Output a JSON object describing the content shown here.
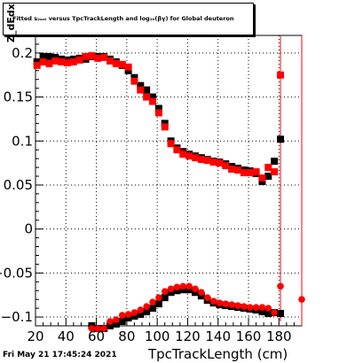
{
  "page": {
    "footer_date": "Fri May 21 17:45:24 2021"
  },
  "chart_data": {
    "type": "scatter",
    "title": "Fitted s_{Z} versus TpcTrackLength and log_{10}(βγ) for Global deuteron",
    "title_display": "Fitted s₂ₐₑᵢ versus TpcTrackLength and log₁₀(βγ) for Global deuteron",
    "xlabel": "TpcTrackLength (cm)",
    "ylabel": "Z_dEdx",
    "xlim": [
      20,
      195
    ],
    "ylim": [
      -0.11,
      0.22
    ],
    "x_ticks": [
      20,
      40,
      60,
      80,
      100,
      120,
      140,
      160,
      180
    ],
    "y_ticks": [
      -0.1,
      -0.05,
      0,
      0.05,
      0.1,
      0.15,
      0.2
    ],
    "y_tick_labels": [
      "−0.1",
      "−0.05",
      "0",
      "0.05",
      "0.1",
      "0.15",
      "0.2"
    ],
    "grid": true,
    "series": [
      {
        "name": "",
        "color": "#000000",
        "marker": "square",
        "x": [
          21,
          25,
          29,
          33,
          37,
          41,
          45,
          49,
          53,
          57,
          61,
          65,
          69,
          73,
          77,
          81,
          85,
          89,
          93,
          97,
          101,
          105,
          109,
          113,
          117,
          121,
          125,
          129,
          133,
          137,
          141,
          145,
          149,
          153,
          157,
          161,
          165,
          169,
          173,
          177,
          181
        ],
        "y": [
          0.19,
          0.196,
          0.196,
          0.195,
          0.193,
          0.192,
          0.193,
          0.194,
          0.193,
          0.196,
          0.196,
          0.196,
          0.193,
          0.19,
          0.186,
          0.18,
          0.172,
          0.163,
          0.158,
          0.15,
          0.137,
          0.12,
          0.1,
          0.092,
          0.088,
          0.085,
          0.083,
          0.081,
          0.079,
          0.077,
          0.076,
          0.074,
          0.071,
          0.069,
          0.067,
          0.066,
          0.063,
          0.054,
          0.06,
          0.077,
          0.102
        ]
      },
      {
        "name": "",
        "color": "#ff0000",
        "marker": "square",
        "x": [
          21,
          25,
          29,
          33,
          37,
          41,
          45,
          49,
          53,
          57,
          61,
          65,
          69,
          73,
          77,
          81,
          85,
          89,
          93,
          97,
          101,
          105,
          109,
          113,
          117,
          121,
          125,
          129,
          133,
          137,
          141,
          145,
          149,
          153,
          157,
          161,
          165,
          169,
          173,
          177,
          181
        ],
        "y": [
          0.186,
          0.19,
          0.188,
          0.191,
          0.19,
          0.189,
          0.19,
          0.192,
          0.196,
          0.197,
          0.194,
          0.195,
          0.191,
          0.188,
          0.187,
          0.184,
          0.168,
          0.158,
          0.15,
          0.145,
          0.132,
          0.116,
          0.097,
          0.09,
          0.085,
          0.083,
          0.081,
          0.079,
          0.078,
          0.076,
          0.075,
          0.072,
          0.068,
          0.067,
          0.064,
          0.064,
          0.065,
          0.058,
          0.07,
          0.065,
          0.175
        ]
      },
      {
        "name": "",
        "color": "#000000",
        "marker": "square",
        "x": [
          57,
          61,
          65,
          69,
          73,
          77,
          81,
          85,
          89,
          93,
          97,
          101,
          105,
          109,
          113,
          117,
          121,
          125,
          129,
          133,
          137,
          141,
          145,
          149,
          153,
          157,
          161,
          165,
          169,
          173,
          177,
          181
        ],
        "y": [
          -0.11,
          -0.115,
          -0.113,
          -0.11,
          -0.108,
          -0.105,
          -0.101,
          -0.099,
          -0.097,
          -0.094,
          -0.09,
          -0.085,
          -0.078,
          -0.072,
          -0.07,
          -0.069,
          -0.069,
          -0.072,
          -0.076,
          -0.081,
          -0.084,
          -0.086,
          -0.087,
          -0.088,
          -0.089,
          -0.09,
          -0.091,
          -0.092,
          -0.094,
          -0.096,
          -0.095,
          -0.096
        ]
      },
      {
        "name": "",
        "color": "#ff0000",
        "marker": "circle",
        "x": [
          57,
          61,
          65,
          69,
          73,
          77,
          81,
          85,
          89,
          93,
          97,
          101,
          105,
          109,
          113,
          117,
          121,
          125,
          129,
          133,
          137,
          141,
          145,
          149,
          153,
          157,
          161,
          165,
          169,
          173,
          177,
          181,
          195
        ],
        "y": [
          -0.118,
          -0.12,
          -0.116,
          -0.105,
          -0.103,
          -0.098,
          -0.097,
          -0.095,
          -0.092,
          -0.088,
          -0.083,
          -0.078,
          -0.071,
          -0.068,
          -0.066,
          -0.065,
          -0.065,
          -0.068,
          -0.072,
          -0.078,
          -0.082,
          -0.084,
          -0.085,
          -0.086,
          -0.087,
          -0.088,
          -0.089,
          -0.089,
          -0.089,
          -0.09,
          -0.095,
          -0.065,
          -0.08
        ]
      }
    ],
    "error_bars": [
      {
        "x": 181,
        "ylow": -0.105,
        "yhigh": 0.22,
        "color": "#ff0000"
      },
      {
        "x": 195,
        "ylow": -0.11,
        "yhigh": 0.22,
        "color": "#ff0000"
      }
    ]
  }
}
